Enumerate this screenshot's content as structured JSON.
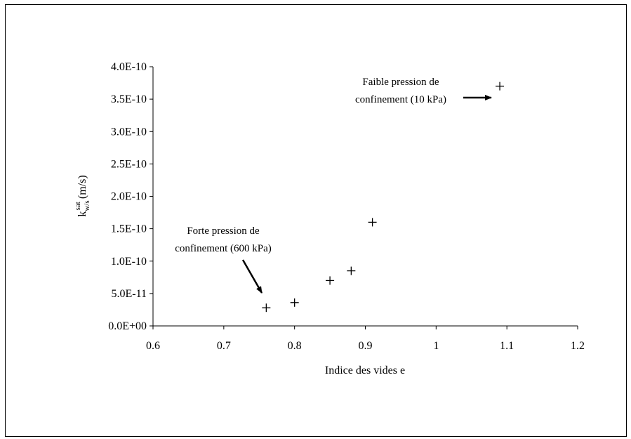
{
  "chart_data": {
    "type": "scatter",
    "title": "",
    "xlabel": "Indice des vides e",
    "ylabel": {
      "base": "k",
      "subscript": "w/s",
      "superscript": "sat",
      "unit": " (m/s)"
    },
    "xlim": [
      0.6,
      1.2
    ],
    "ylim": [
      0,
      4e-10
    ],
    "x_ticks": [
      0.6,
      0.7,
      0.8,
      0.9,
      1.0,
      1.1,
      1.2
    ],
    "x_tick_labels": [
      "0.6",
      "0.7",
      "0.8",
      "0.9",
      "1",
      "1.1",
      "1.2"
    ],
    "y_ticks": [
      0,
      5e-11,
      1e-10,
      1.5e-10,
      2e-10,
      2.5e-10,
      3e-10,
      3.5e-10,
      4e-10
    ],
    "y_tick_labels": [
      "0.0E+00",
      "5.0E-11",
      "1.0E-10",
      "1.5E-10",
      "2.0E-10",
      "2.5E-10",
      "3.0E-10",
      "3.5E-10",
      "4.0E-10"
    ],
    "grid": false,
    "marker": "+",
    "points": [
      {
        "x": 0.76,
        "y": 2.8e-11
      },
      {
        "x": 0.8,
        "y": 3.6e-11
      },
      {
        "x": 0.85,
        "y": 7e-11
      },
      {
        "x": 0.88,
        "y": 8.5e-11
      },
      {
        "x": 0.91,
        "y": 1.6e-10
      },
      {
        "x": 1.09,
        "y": 3.7e-10
      }
    ],
    "annotations": [
      {
        "lines": [
          "Forte pression de",
          "confinement (600 kPa)"
        ],
        "points_to": {
          "x": 0.76,
          "y": 2.8e-11
        }
      },
      {
        "lines": [
          "Faible pression de",
          "confinement (10 kPa)"
        ],
        "points_to": {
          "x": 1.09,
          "y": 3.7e-10
        }
      }
    ]
  }
}
